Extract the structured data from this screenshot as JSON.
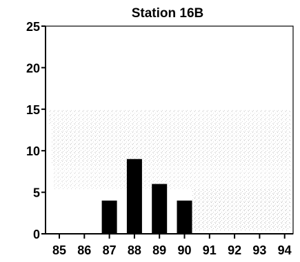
{
  "chart_data": {
    "type": "bar",
    "title": "Station 16B",
    "xlabel": "",
    "ylabel": "",
    "categories": [
      "85",
      "86",
      "87",
      "88",
      "89",
      "90",
      "91",
      "92",
      "93",
      "94"
    ],
    "values": [
      0,
      0,
      4,
      9,
      6,
      4,
      0,
      0,
      0,
      0
    ],
    "ylim": [
      0,
      25
    ],
    "yticks": [
      0,
      5,
      10,
      15,
      20,
      25
    ],
    "grid": false,
    "legend": "none",
    "bar_color": "#000000",
    "axis_color": "#000000"
  }
}
